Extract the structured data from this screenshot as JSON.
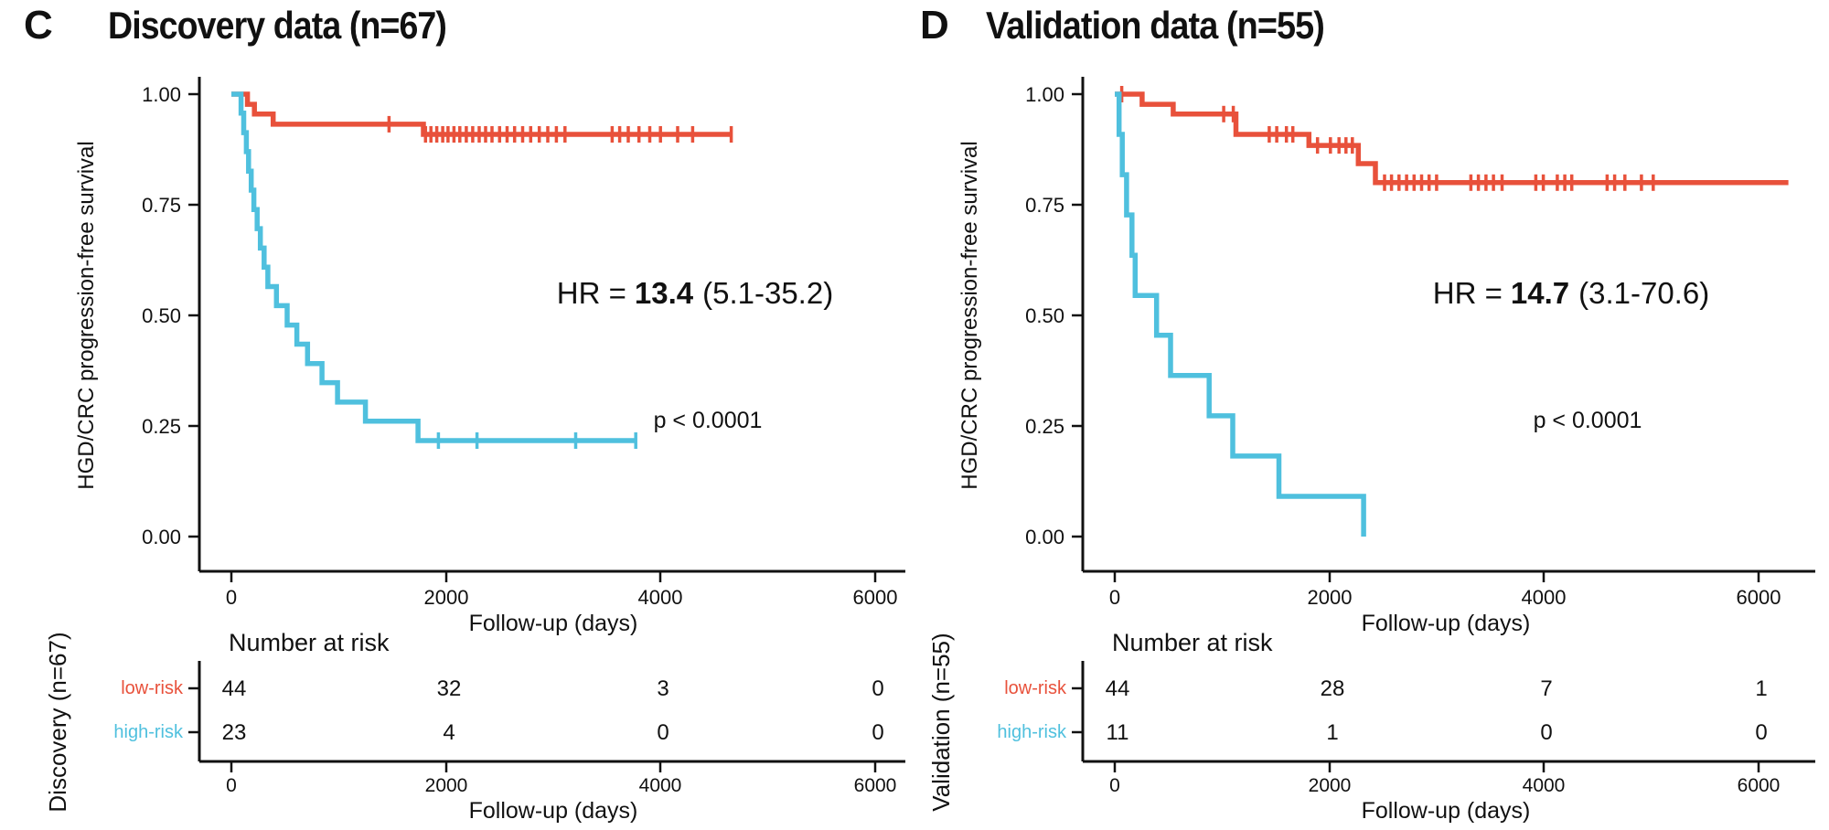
{
  "colors": {
    "low_risk": "#E8513B",
    "high_risk": "#4FC0DE",
    "text": "#111111",
    "background": "#ffffff"
  },
  "panels": [
    {
      "letter": "C",
      "title": "Discovery data (n=67)",
      "ylabel": "HGD/CRC progression-free survival",
      "xlabel": "Follow-up (days)",
      "hr_prefix": "HR =",
      "hr_value": "13.4",
      "hr_ci": "(5.1-35.2)",
      "p_value": "p < 0.0001",
      "y_ticks": [
        "1.00",
        "0.75",
        "0.50",
        "0.25",
        "0.00"
      ],
      "x_ticks": [
        "0",
        "2000",
        "4000",
        "6000"
      ],
      "risk_header": "Number at risk",
      "risk_ylabel": "Discovery (n=67)",
      "risk_xlabel": "Follow-up (days)",
      "risk_rows": [
        {
          "label": "low-risk",
          "color": "#E8513B",
          "values": [
            "44",
            "32",
            "3",
            "0"
          ]
        },
        {
          "label": "high-risk",
          "color": "#4FC0DE",
          "values": [
            "23",
            "4",
            "0",
            "0"
          ]
        }
      ]
    },
    {
      "letter": "D",
      "title": "Validation data (n=55)",
      "ylabel": "HGD/CRC progression-free survival",
      "xlabel": "Follow-up (days)",
      "hr_prefix": "HR =",
      "hr_value": "14.7",
      "hr_ci": "(3.1-70.6)",
      "p_value": "p < 0.0001",
      "y_ticks": [
        "1.00",
        "0.75",
        "0.50",
        "0.25",
        "0.00"
      ],
      "x_ticks": [
        "0",
        "2000",
        "4000",
        "6000"
      ],
      "risk_header": "Number at risk",
      "risk_ylabel": "Validation (n=55)",
      "risk_xlabel": "Follow-up (days)",
      "risk_rows": [
        {
          "label": "low-risk",
          "color": "#E8513B",
          "values": [
            "44",
            "28",
            "7",
            "1"
          ]
        },
        {
          "label": "high-risk",
          "color": "#4FC0DE",
          "values": [
            "11",
            "1",
            "0",
            "0"
          ]
        }
      ]
    }
  ],
  "chart_data": [
    {
      "type": "line",
      "subtype": "kaplan-meier",
      "title": "Discovery data (n=67)",
      "xlabel": "Follow-up (days)",
      "ylabel": "HGD/CRC progression-free survival",
      "xlim": [
        0,
        6300
      ],
      "ylim": [
        0,
        1
      ],
      "x_ticks": [
        0,
        2000,
        4000,
        6000
      ],
      "y_ticks": [
        1.0,
        0.75,
        0.5,
        0.25,
        0.0
      ],
      "annotations": [
        "HR = 13.4 (5.1-35.2)",
        "p < 0.0001"
      ],
      "series": [
        {
          "name": "low-risk",
          "color": "#E8513B",
          "steps": [
            [
              0,
              1.0
            ],
            [
              150,
              0.977
            ],
            [
              215,
              0.955
            ],
            [
              390,
              0.932
            ],
            [
              1790,
              0.909
            ]
          ],
          "end": 4670,
          "censor_times": [
            1470,
            1810,
            1860,
            1915,
            1970,
            2020,
            2075,
            2130,
            2190,
            2250,
            2310,
            2370,
            2430,
            2500,
            2570,
            2640,
            2715,
            2790,
            2870,
            2950,
            3030,
            3110,
            3550,
            3620,
            3700,
            3800,
            3900,
            4000,
            4160,
            4300,
            4660
          ]
        },
        {
          "name": "high-risk",
          "color": "#4FC0DE",
          "steps": [
            [
              0,
              1.0
            ],
            [
              90,
              0.957
            ],
            [
              115,
              0.913
            ],
            [
              140,
              0.87
            ],
            [
              160,
              0.826
            ],
            [
              185,
              0.783
            ],
            [
              210,
              0.739
            ],
            [
              240,
              0.696
            ],
            [
              270,
              0.652
            ],
            [
              305,
              0.609
            ],
            [
              340,
              0.565
            ],
            [
              420,
              0.522
            ],
            [
              520,
              0.478
            ],
            [
              610,
              0.435
            ],
            [
              710,
              0.391
            ],
            [
              845,
              0.348
            ],
            [
              990,
              0.304
            ],
            [
              1250,
              0.261
            ],
            [
              1740,
              0.217
            ]
          ],
          "end": 3780,
          "censor_times": [
            1930,
            2290,
            3210,
            3770
          ]
        }
      ],
      "number_at_risk": {
        "times": [
          0,
          2000,
          4000,
          6000
        ],
        "low_risk": [
          44,
          32,
          3,
          0
        ],
        "high_risk": [
          23,
          4,
          0,
          0
        ]
      }
    },
    {
      "type": "line",
      "subtype": "kaplan-meier",
      "title": "Validation data (n=55)",
      "xlabel": "Follow-up (days)",
      "ylabel": "HGD/CRC progression-free survival",
      "xlim": [
        0,
        6300
      ],
      "ylim": [
        0,
        1
      ],
      "x_ticks": [
        0,
        2000,
        4000,
        6000
      ],
      "y_ticks": [
        1.0,
        0.75,
        0.5,
        0.25,
        0.0
      ],
      "annotations": [
        "HR = 14.7 (3.1-70.6)",
        "p < 0.0001"
      ],
      "series": [
        {
          "name": "low-risk",
          "color": "#E8513B",
          "steps": [
            [
              0,
              1.0
            ],
            [
              255,
              0.977
            ],
            [
              545,
              0.955
            ],
            [
              1130,
              0.909
            ],
            [
              1810,
              0.884
            ],
            [
              2270,
              0.843
            ],
            [
              2430,
              0.8
            ]
          ],
          "end": 6280,
          "censor_times": [
            65,
            1015,
            1105,
            1440,
            1510,
            1600,
            1660,
            1890,
            2010,
            2090,
            2155,
            2215,
            2515,
            2580,
            2650,
            2720,
            2790,
            2860,
            2930,
            3000,
            3320,
            3390,
            3460,
            3530,
            3610,
            3925,
            3995,
            4125,
            4195,
            4260,
            4590,
            4660,
            4755,
            4910,
            5020
          ]
        },
        {
          "name": "high-risk",
          "color": "#4FC0DE",
          "steps": [
            [
              0,
              1.0
            ],
            [
              40,
              0.909
            ],
            [
              70,
              0.818
            ],
            [
              110,
              0.727
            ],
            [
              160,
              0.636
            ],
            [
              190,
              0.545
            ],
            [
              390,
              0.455
            ],
            [
              520,
              0.364
            ],
            [
              880,
              0.273
            ],
            [
              1100,
              0.182
            ],
            [
              1530,
              0.091
            ],
            [
              2320,
              0.0
            ]
          ],
          "end": 2320,
          "censor_times": []
        }
      ],
      "number_at_risk": {
        "times": [
          0,
          2000,
          4000,
          6000
        ],
        "low_risk": [
          44,
          28,
          7,
          1
        ],
        "high_risk": [
          11,
          1,
          0,
          0
        ]
      }
    }
  ]
}
